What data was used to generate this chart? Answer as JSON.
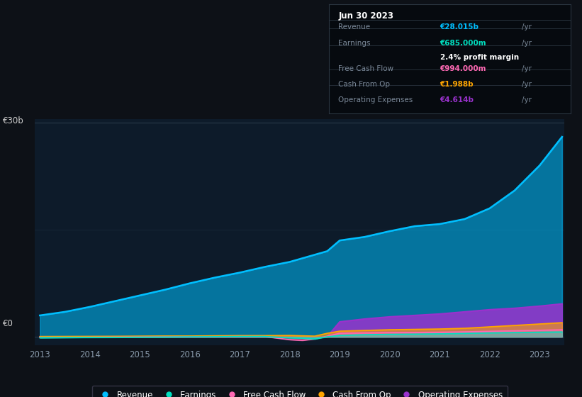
{
  "bg_color": "#0d1117",
  "plot_bg_color": "#0d1b2a",
  "years": [
    2013,
    2013.5,
    2014,
    2014.5,
    2015,
    2015.5,
    2016,
    2016.5,
    2017,
    2017.5,
    2018,
    2018.25,
    2018.5,
    2018.75,
    2019,
    2019.5,
    2020,
    2020.5,
    2021,
    2021.5,
    2022,
    2022.5,
    2023,
    2023.45
  ],
  "revenue": [
    3.0,
    3.5,
    4.2,
    5.0,
    5.8,
    6.6,
    7.5,
    8.3,
    9.0,
    9.8,
    10.5,
    11.0,
    11.5,
    12.0,
    13.5,
    14.0,
    14.8,
    15.5,
    15.8,
    16.5,
    18.0,
    20.5,
    24.0,
    28.015
  ],
  "earnings": [
    -0.15,
    -0.12,
    -0.1,
    -0.08,
    -0.05,
    -0.03,
    0.0,
    0.02,
    0.05,
    0.05,
    -0.15,
    -0.2,
    -0.3,
    0.0,
    0.2,
    0.3,
    0.35,
    0.38,
    0.42,
    0.48,
    0.55,
    0.6,
    0.65,
    0.685
  ],
  "free_cash_flow": [
    -0.1,
    -0.08,
    -0.06,
    -0.04,
    -0.02,
    0.0,
    0.02,
    0.03,
    0.05,
    0.04,
    -0.4,
    -0.5,
    -0.3,
    0.1,
    0.5,
    0.55,
    0.6,
    0.62,
    0.65,
    0.7,
    0.78,
    0.85,
    0.92,
    0.994
  ],
  "cash_from_op": [
    0.05,
    0.06,
    0.07,
    0.08,
    0.1,
    0.12,
    0.12,
    0.15,
    0.18,
    0.18,
    0.2,
    0.15,
    0.1,
    0.5,
    0.8,
    0.9,
    1.0,
    1.05,
    1.1,
    1.2,
    1.4,
    1.6,
    1.8,
    1.988
  ],
  "operating_expenses": [
    0.0,
    0.0,
    0.0,
    0.0,
    0.0,
    0.0,
    0.0,
    0.0,
    0.0,
    0.0,
    0.0,
    0.0,
    0.0,
    0.0,
    2.1,
    2.5,
    2.8,
    3.0,
    3.2,
    3.5,
    3.8,
    4.0,
    4.3,
    4.614
  ],
  "revenue_color": "#00bfff",
  "earnings_color": "#00e0c0",
  "free_cash_flow_color": "#ff69b4",
  "cash_from_op_color": "#ffa500",
  "operating_expenses_color": "#9932cc",
  "y_label_top": "€30b",
  "y_label_zero": "€0",
  "ylim_min": -1.2,
  "ylim_max": 30.5,
  "tooltip_title": "Jun 30 2023",
  "tooltip_revenue_label": "Revenue",
  "tooltip_revenue_value": "€28.015b",
  "tooltip_earnings_label": "Earnings",
  "tooltip_earnings_value": "€685.000m",
  "tooltip_profit_margin": "2.4% profit margin",
  "tooltip_fcf_label": "Free Cash Flow",
  "tooltip_fcf_value": "€994.000m",
  "tooltip_cfop_label": "Cash From Op",
  "tooltip_cfop_value": "€1.988b",
  "tooltip_opex_label": "Operating Expenses",
  "tooltip_opex_value": "€4.614b",
  "legend_labels": [
    "Revenue",
    "Earnings",
    "Free Cash Flow",
    "Cash From Op",
    "Operating Expenses"
  ]
}
